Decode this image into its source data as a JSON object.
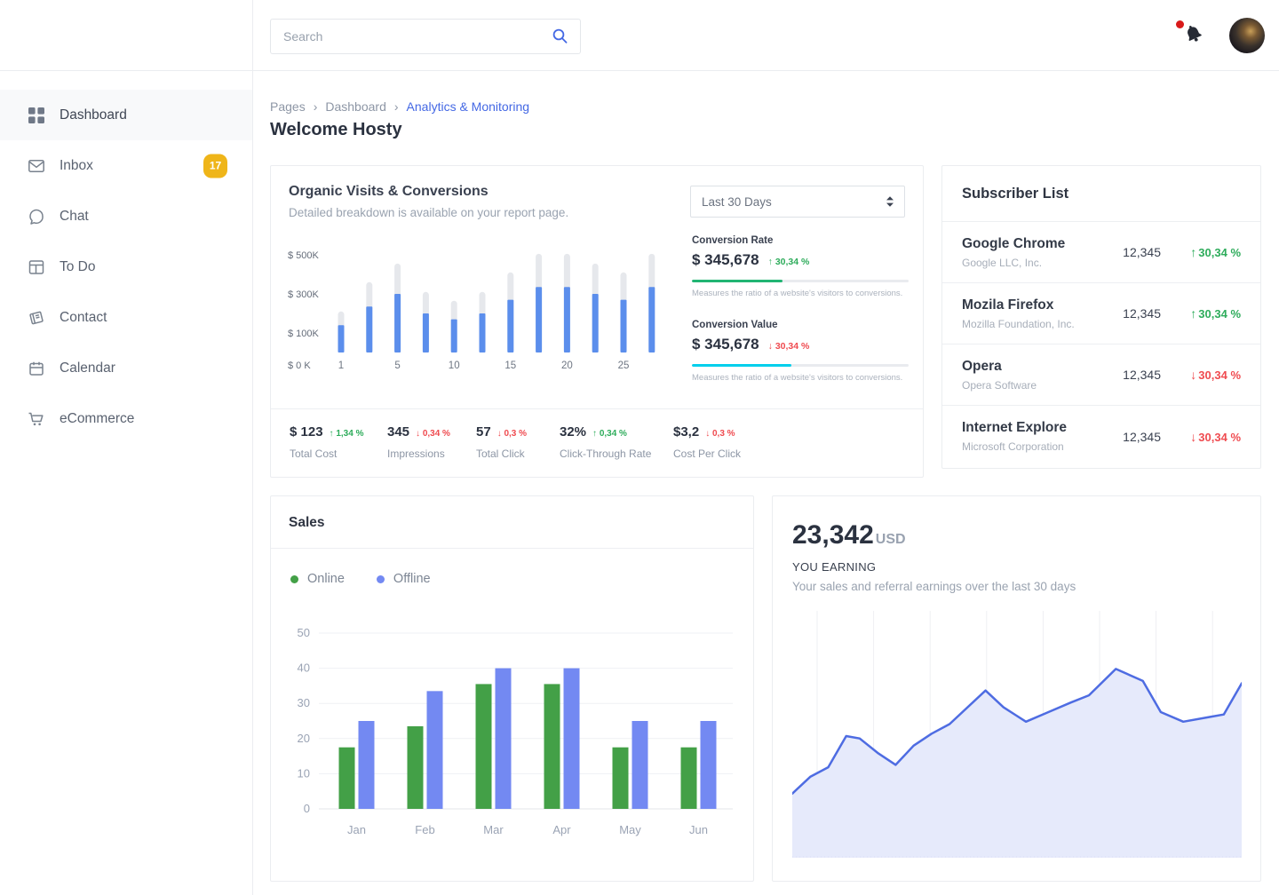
{
  "topbar": {
    "search_placeholder": "Search"
  },
  "sidebar": {
    "items": [
      {
        "label": "Dashboard",
        "active": true
      },
      {
        "label": "Inbox",
        "badge": "17"
      },
      {
        "label": "Chat"
      },
      {
        "label": "To Do"
      },
      {
        "label": "Contact"
      },
      {
        "label": "Calendar"
      },
      {
        "label": "eCommerce"
      }
    ]
  },
  "breadcrumb": {
    "items": [
      "Pages",
      "Dashboard",
      "Analytics & Monitoring"
    ],
    "separator": "›"
  },
  "page_title": "Welcome Hosty",
  "organic": {
    "title": "Organic Visits & Conversions",
    "subtitle": "Detailed breakdown is available on your report page.",
    "period": "Last 30 Days",
    "metrics": [
      {
        "label": "Conversion Rate",
        "value": "$ 345,678",
        "delta": "30,34 %",
        "direction": "up",
        "bar_color": "#21B573",
        "bar_fill": 42,
        "caption": "Measures the ratio of a website's visitors to conversions."
      },
      {
        "label": "Conversion Value",
        "value": "$ 345,678",
        "delta": "30,34 %",
        "direction": "down",
        "bar_color": "#00CFEC",
        "bar_fill": 46,
        "caption": "Measures the ratio of a website's visitors to conversions."
      }
    ],
    "stats": [
      {
        "value": "$ 123",
        "delta": "1,34 %",
        "direction": "up",
        "label": "Total Cost"
      },
      {
        "value": "345",
        "delta": "0,34 %",
        "direction": "down",
        "label": "Impressions"
      },
      {
        "value": "57",
        "delta": "0,3 %",
        "direction": "down",
        "label": "Total Click"
      },
      {
        "value": "32%",
        "delta": "0,34 %",
        "direction": "up",
        "label": "Click-Through Rate"
      },
      {
        "value": "$3,2",
        "delta": "0,3 %",
        "direction": "down",
        "label": "Cost Per Click"
      }
    ]
  },
  "subscribers": {
    "title": "Subscriber List",
    "rows": [
      {
        "name": "Google Chrome",
        "company": "Google LLC, Inc.",
        "count": "12,345",
        "delta": "30,34 %",
        "direction": "up"
      },
      {
        "name": "Mozila Firefox",
        "company": "Mozilla Foundation, Inc.",
        "count": "12,345",
        "delta": "30,34 %",
        "direction": "up"
      },
      {
        "name": "Opera",
        "company": "Opera Software",
        "count": "12,345",
        "delta": "30,34 %",
        "direction": "down"
      },
      {
        "name": "Internet Explore",
        "company": "Microsoft Corporation",
        "count": "12,345",
        "delta": "30,34 %",
        "direction": "down"
      }
    ]
  },
  "sales": {
    "title": "Sales",
    "legend": [
      {
        "label": "Online",
        "color": "#43A047"
      },
      {
        "label": "Offline",
        "color": "#7389F2"
      }
    ]
  },
  "earning": {
    "amount": "23,342",
    "currency": "USD",
    "label": "YOU EARNING",
    "caption": "Your sales and referral earnings over the last 30 days"
  },
  "colors": {
    "accent_blue": "#4468E4",
    "positive_green": "#2EAC5B",
    "negative_red": "#EF4B50",
    "badge_yellow": "#EFB519"
  },
  "chart_data": [
    {
      "id": "organic",
      "type": "bar",
      "title": "Organic Visits & Conversions",
      "unit": "K USD",
      "ylim": [
        0,
        550
      ],
      "y_ticks": [
        "$ 500K",
        "$ 300K",
        "$ 100K",
        "$ 0 K"
      ],
      "x_ticks": [
        "1",
        "5",
        "10",
        "15",
        "20",
        "25"
      ],
      "series": [
        {
          "name": "Total (track)",
          "color": "#E6E8EC",
          "values": [
            210,
            360,
            455,
            310,
            265,
            310,
            410,
            505,
            505,
            455,
            410,
            505
          ]
        },
        {
          "name": "Organic visits",
          "color": "#5B8EEC",
          "values": [
            140,
            235,
            300,
            200,
            170,
            200,
            270,
            335,
            335,
            300,
            270,
            335
          ]
        }
      ]
    },
    {
      "id": "sales",
      "type": "bar",
      "title": "Sales",
      "categories": [
        "Jan",
        "Feb",
        "Mar",
        "Apr",
        "May",
        "Jun"
      ],
      "ylim": [
        0,
        50
      ],
      "y_ticks": [
        0,
        10,
        20,
        30,
        40,
        50
      ],
      "series": [
        {
          "name": "Online",
          "color": "#43A047",
          "values": [
            17.5,
            23.5,
            35.5,
            35.5,
            17.5,
            17.5
          ]
        },
        {
          "name": "Offline",
          "color": "#7389F2",
          "values": [
            25,
            33.5,
            40,
            40,
            25,
            25
          ]
        }
      ]
    },
    {
      "id": "earning",
      "type": "area",
      "title": "Earnings over the last 30 days",
      "ylim": [
        0,
        100
      ],
      "gridlines": 8,
      "line_color": "#4E6CE2",
      "fill_color": "#E6EAFB",
      "x": [
        0,
        4,
        8,
        12,
        15,
        19,
        23,
        27,
        31,
        35,
        43,
        47,
        52,
        57,
        62,
        66,
        72,
        78,
        82,
        87,
        93,
        96,
        100
      ],
      "values": [
        26,
        33,
        37,
        50,
        49,
        43,
        38,
        46,
        51,
        55,
        69,
        62,
        56,
        60,
        64,
        67,
        78,
        73,
        60,
        56,
        58,
        59,
        72
      ]
    }
  ]
}
